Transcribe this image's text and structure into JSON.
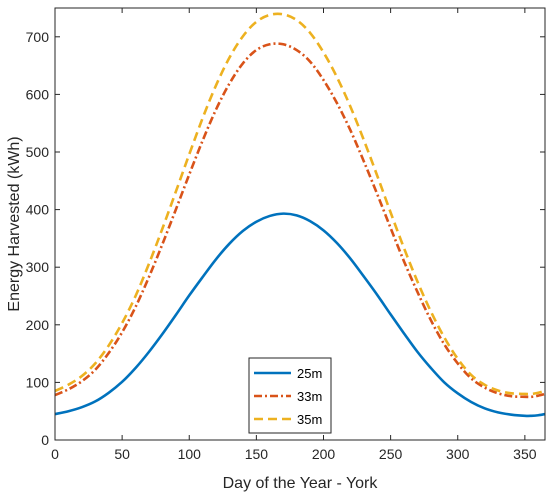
{
  "chart_data": {
    "type": "line",
    "title": "",
    "xlabel": "Day of the Year - York",
    "ylabel": "Energy Harvested (kWh)",
    "xlim": [
      0,
      365
    ],
    "ylim": [
      0,
      750
    ],
    "xticks": [
      0,
      50,
      100,
      150,
      200,
      250,
      300,
      350
    ],
    "yticks": [
      0,
      100,
      200,
      300,
      400,
      500,
      600,
      700
    ],
    "grid": false,
    "legend_position": "bottom-center",
    "series": [
      {
        "name": "25m",
        "color": "#0072BD",
        "style": "solid",
        "x": [
          0,
          10,
          20,
          30,
          40,
          50,
          60,
          70,
          80,
          90,
          100,
          110,
          120,
          130,
          140,
          150,
          160,
          170,
          180,
          190,
          200,
          210,
          220,
          230,
          240,
          250,
          260,
          270,
          280,
          290,
          300,
          310,
          320,
          330,
          340,
          350,
          355,
          360,
          365
        ],
        "y": [
          45,
          50,
          57,
          67,
          82,
          101,
          125,
          153,
          184,
          217,
          251,
          283,
          314,
          341,
          363,
          379,
          389,
          393,
          390,
          380,
          364,
          342,
          315,
          284,
          252,
          218,
          185,
          153,
          125,
          100,
          81,
          66,
          55,
          48,
          44,
          42,
          42,
          43,
          45
        ]
      },
      {
        "name": "33m",
        "color": "#D95319",
        "style": "dashdot",
        "x": [
          0,
          10,
          20,
          30,
          40,
          50,
          60,
          70,
          80,
          90,
          100,
          110,
          120,
          130,
          140,
          150,
          160,
          170,
          180,
          190,
          200,
          210,
          220,
          230,
          240,
          250,
          260,
          270,
          280,
          290,
          300,
          310,
          320,
          330,
          340,
          350,
          355,
          360,
          365
        ],
        "y": [
          78,
          88,
          102,
          122,
          151,
          187,
          231,
          283,
          340,
          400,
          461,
          520,
          574,
          619,
          654,
          677,
          687,
          687,
          677,
          657,
          625,
          585,
          538,
          484,
          427,
          368,
          310,
          257,
          208,
          166,
          133,
          107,
          91,
          81,
          76,
          75,
          75,
          77,
          80
        ]
      },
      {
        "name": "35m",
        "color": "#EDB120",
        "style": "dashed",
        "x": [
          0,
          10,
          20,
          30,
          40,
          50,
          60,
          70,
          80,
          90,
          100,
          110,
          120,
          130,
          140,
          150,
          160,
          170,
          180,
          190,
          200,
          210,
          220,
          230,
          240,
          250,
          260,
          270,
          280,
          290,
          300,
          310,
          320,
          330,
          340,
          350,
          355,
          360,
          365
        ],
        "y": [
          85,
          96,
          111,
          133,
          164,
          203,
          250,
          306,
          367,
          431,
          496,
          559,
          616,
          664,
          701,
          726,
          738,
          739,
          729,
          707,
          673,
          630,
          579,
          521,
          459,
          395,
          333,
          275,
          223,
          178,
          141,
          113,
          96,
          86,
          81,
          80,
          80,
          82,
          85
        ]
      }
    ]
  }
}
